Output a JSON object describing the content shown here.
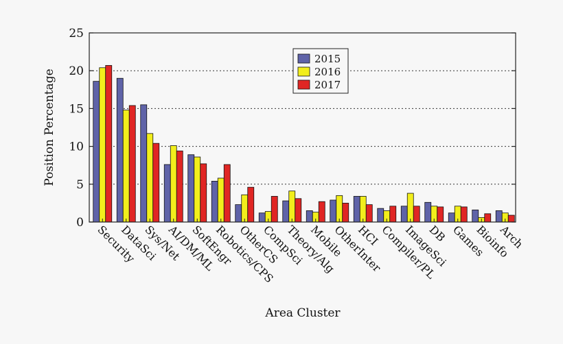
{
  "chart_data": {
    "type": "bar",
    "title": "",
    "xlabel": "Area Cluster",
    "ylabel": "Position Percentage",
    "ylim": [
      0,
      25
    ],
    "yticks": [
      "0",
      "5",
      "10",
      "15",
      "20",
      "25"
    ],
    "grid": "horizontal dotted",
    "legend_position": "top-right",
    "categories": [
      "Security",
      "DataSci",
      "Sys/Net",
      "AI/DM/ML",
      "SoftEngr",
      "Robotics/CPS",
      "OtherCS",
      "CompSci",
      "Theory/Alg",
      "Mobile",
      "OtherInter",
      "HCI",
      "Compiler/PL",
      "ImageSci",
      "DB",
      "Games",
      "Bioinfo",
      "Arch"
    ],
    "series": [
      {
        "name": "2015",
        "color": "#5f63a8",
        "values": [
          18.6,
          19.0,
          15.5,
          7.6,
          8.9,
          5.4,
          2.3,
          1.2,
          2.8,
          1.5,
          2.9,
          3.4,
          1.8,
          2.1,
          2.6,
          1.2,
          1.6,
          1.5
        ]
      },
      {
        "name": "2016",
        "color": "#f2ee1c",
        "values": [
          20.4,
          14.8,
          11.7,
          10.1,
          8.6,
          5.8,
          3.6,
          1.4,
          4.1,
          1.3,
          3.5,
          3.4,
          1.5,
          3.8,
          2.1,
          2.1,
          0.6,
          1.2
        ]
      },
      {
        "name": "2017",
        "color": "#e02624",
        "values": [
          20.7,
          15.4,
          10.4,
          9.4,
          7.7,
          7.6,
          4.6,
          3.4,
          3.1,
          2.7,
          2.5,
          2.3,
          2.1,
          2.1,
          2.0,
          2.0,
          1.1,
          0.9
        ]
      }
    ]
  }
}
